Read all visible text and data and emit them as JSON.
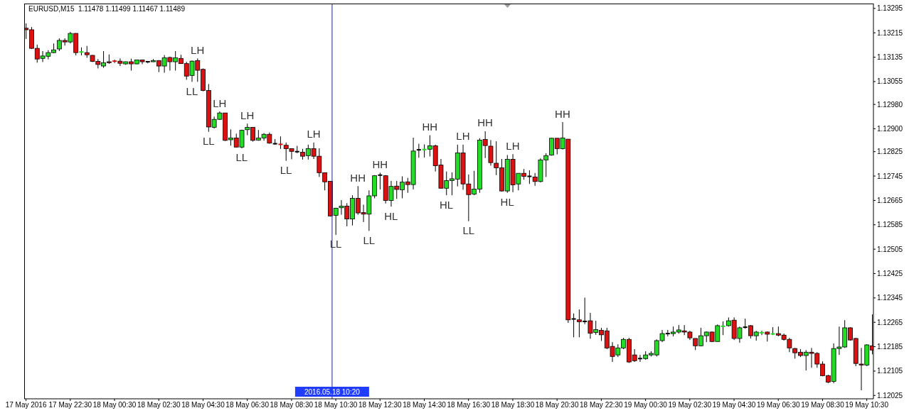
{
  "chart_data": {
    "type": "candlestick",
    "title": "EURUSD,M15  1.11478 1.11499 1.11467 1.11489",
    "x": [
      "2016-05-17T20:30",
      "2016-05-17T20:45",
      "2016-05-17T21:00",
      "2016-05-17T21:15",
      "2016-05-17T21:30",
      "2016-05-17T21:45",
      "2016-05-17T22:00",
      "2016-05-17T22:15",
      "2016-05-17T22:30",
      "2016-05-17T22:45",
      "2016-05-17T23:00",
      "2016-05-17T23:15",
      "2016-05-17T23:30",
      "2016-05-17T23:45",
      "2016-05-18T00:00",
      "2016-05-18T00:15",
      "2016-05-18T00:30",
      "2016-05-18T00:45",
      "2016-05-18T01:00",
      "2016-05-18T01:15",
      "2016-05-18T01:30",
      "2016-05-18T01:45",
      "2016-05-18T02:00",
      "2016-05-18T02:15",
      "2016-05-18T02:30",
      "2016-05-18T02:45",
      "2016-05-18T03:00",
      "2016-05-18T03:15",
      "2016-05-18T03:30",
      "2016-05-18T03:45",
      "2016-05-18T04:00",
      "2016-05-18T04:15",
      "2016-05-18T04:30",
      "2016-05-18T04:45",
      "2016-05-18T05:00",
      "2016-05-18T05:15",
      "2016-05-18T05:30",
      "2016-05-18T05:45",
      "2016-05-18T06:00",
      "2016-05-18T06:15",
      "2016-05-18T06:30",
      "2016-05-18T06:45",
      "2016-05-18T07:00",
      "2016-05-18T07:15",
      "2016-05-18T07:30",
      "2016-05-18T07:45",
      "2016-05-18T08:00",
      "2016-05-18T08:15",
      "2016-05-18T08:30",
      "2016-05-18T08:45",
      "2016-05-18T09:00",
      "2016-05-18T09:15",
      "2016-05-18T09:30",
      "2016-05-18T09:45",
      "2016-05-18T10:00",
      "2016-05-18T10:15",
      "2016-05-18T10:30",
      "2016-05-18T10:45",
      "2016-05-18T11:00",
      "2016-05-18T11:15",
      "2016-05-18T11:30",
      "2016-05-18T11:45",
      "2016-05-18T12:00",
      "2016-05-18T12:15",
      "2016-05-18T12:30",
      "2016-05-18T12:45",
      "2016-05-18T13:00",
      "2016-05-18T13:15",
      "2016-05-18T13:30",
      "2016-05-18T13:45",
      "2016-05-18T14:00",
      "2016-05-18T14:15",
      "2016-05-18T14:30",
      "2016-05-18T14:45",
      "2016-05-18T15:00",
      "2016-05-18T15:15",
      "2016-05-18T15:30",
      "2016-05-18T15:45",
      "2016-05-18T16:00",
      "2016-05-18T16:15",
      "2016-05-18T16:30",
      "2016-05-18T16:45",
      "2016-05-18T17:00",
      "2016-05-18T17:15",
      "2016-05-18T17:30",
      "2016-05-18T17:45",
      "2016-05-18T18:00",
      "2016-05-18T18:15",
      "2016-05-18T18:30",
      "2016-05-18T18:45",
      "2016-05-18T19:00",
      "2016-05-18T19:15",
      "2016-05-18T19:30",
      "2016-05-18T19:45",
      "2016-05-18T20:00",
      "2016-05-18T20:15",
      "2016-05-18T20:30",
      "2016-05-18T20:45",
      "2016-05-18T21:00",
      "2016-05-18T21:15",
      "2016-05-18T21:30",
      "2016-05-18T21:45",
      "2016-05-18T22:00",
      "2016-05-18T22:15",
      "2016-05-18T22:30",
      "2016-05-18T22:45",
      "2016-05-18T23:00",
      "2016-05-18T23:15",
      "2016-05-18T23:30",
      "2016-05-18T23:45",
      "2016-05-19T00:00",
      "2016-05-19T00:15",
      "2016-05-19T00:30",
      "2016-05-19T00:45",
      "2016-05-19T01:00",
      "2016-05-19T01:15",
      "2016-05-19T01:30",
      "2016-05-19T01:45",
      "2016-05-19T02:00",
      "2016-05-19T02:15",
      "2016-05-19T02:30",
      "2016-05-19T02:45",
      "2016-05-19T03:00",
      "2016-05-19T03:15",
      "2016-05-19T03:30",
      "2016-05-19T03:45",
      "2016-05-19T04:00",
      "2016-05-19T04:15",
      "2016-05-19T04:30",
      "2016-05-19T04:45",
      "2016-05-19T05:00",
      "2016-05-19T05:15",
      "2016-05-19T05:30",
      "2016-05-19T05:45",
      "2016-05-19T06:00",
      "2016-05-19T06:15",
      "2016-05-19T06:30",
      "2016-05-19T06:45",
      "2016-05-19T07:00",
      "2016-05-19T07:15",
      "2016-05-19T07:30",
      "2016-05-19T07:45",
      "2016-05-19T08:00",
      "2016-05-19T08:15",
      "2016-05-19T08:30",
      "2016-05-19T08:45",
      "2016-05-19T09:00",
      "2016-05-19T09:15",
      "2016-05-19T09:30",
      "2016-05-19T09:45",
      "2016-05-19T10:00",
      "2016-05-19T10:15",
      "2016-05-19T10:30",
      "2016-05-19T10:45"
    ],
    "ohlc": [
      [
        1.1323,
        1.13246,
        1.13195,
        1.13225
      ],
      [
        1.13225,
        1.13234,
        1.13162,
        1.13164
      ],
      [
        1.13164,
        1.13176,
        1.13117,
        1.13129
      ],
      [
        1.13131,
        1.13155,
        1.13119,
        1.13139
      ],
      [
        1.13138,
        1.13158,
        1.13128,
        1.1315
      ],
      [
        1.1315,
        1.1318,
        1.13148,
        1.13159
      ],
      [
        1.13162,
        1.13197,
        1.13155,
        1.1319
      ],
      [
        1.1319,
        1.13197,
        1.13173,
        1.13185
      ],
      [
        1.13185,
        1.13218,
        1.1318,
        1.13213
      ],
      [
        1.13213,
        1.13214,
        1.13141,
        1.1315
      ],
      [
        1.1315,
        1.13167,
        1.13141,
        1.13152
      ],
      [
        1.1315,
        1.13172,
        1.13133,
        1.13143
      ],
      [
        1.13141,
        1.13142,
        1.13119,
        1.13121
      ],
      [
        1.13121,
        1.13129,
        1.13098,
        1.13111
      ],
      [
        1.13106,
        1.13155,
        1.131,
        1.13117
      ],
      [
        1.1312,
        1.13144,
        1.13113,
        1.13117
      ],
      [
        1.13122,
        1.13127,
        1.13116,
        1.1312
      ],
      [
        1.13122,
        1.13131,
        1.13106,
        1.13115
      ],
      [
        1.13113,
        1.13121,
        1.1311,
        1.1312
      ],
      [
        1.1312,
        1.1313,
        1.13091,
        1.13113
      ],
      [
        1.13113,
        1.13127,
        1.13112,
        1.13126
      ],
      [
        1.13126,
        1.13127,
        1.13112,
        1.1312
      ],
      [
        1.1312,
        1.13121,
        1.13115,
        1.1312
      ],
      [
        1.1312,
        1.13129,
        1.13119,
        1.13124
      ],
      [
        1.13124,
        1.13125,
        1.13086,
        1.13106
      ],
      [
        1.13106,
        1.13142,
        1.13084,
        1.13133
      ],
      [
        1.13134,
        1.13137,
        1.13091,
        1.1312
      ],
      [
        1.1312,
        1.13155,
        1.13091,
        1.13133
      ],
      [
        1.13131,
        1.13143,
        1.13113,
        1.13114
      ],
      [
        1.13114,
        1.1312,
        1.13061,
        1.13073
      ],
      [
        1.13075,
        1.13124,
        1.13054,
        1.13122
      ],
      [
        1.13124,
        1.13131,
        1.13054,
        1.13092
      ],
      [
        1.13095,
        1.13098,
        1.13023,
        1.13026
      ],
      [
        1.13026,
        1.13047,
        1.1289,
        1.12906
      ],
      [
        1.12905,
        1.1294,
        1.12901,
        1.12931
      ],
      [
        1.12931,
        1.12957,
        1.12929,
        1.12952
      ],
      [
        1.12952,
        1.12952,
        1.1286,
        1.12862
      ],
      [
        1.12864,
        1.12898,
        1.12845,
        1.1287
      ],
      [
        1.1287,
        1.12884,
        1.12839,
        1.1284
      ],
      [
        1.1284,
        1.12897,
        1.12836,
        1.12895
      ],
      [
        1.12897,
        1.12917,
        1.12879,
        1.12905
      ],
      [
        1.12905,
        1.12905,
        1.12858,
        1.12862
      ],
      [
        1.12863,
        1.12896,
        1.12861,
        1.1287
      ],
      [
        1.1287,
        1.12886,
        1.12861,
        1.12882
      ],
      [
        1.12882,
        1.12888,
        1.12851,
        1.12853
      ],
      [
        1.12851,
        1.12866,
        1.12848,
        1.12851
      ],
      [
        1.12849,
        1.12875,
        1.12834,
        1.12848
      ],
      [
        1.12846,
        1.12855,
        1.12795,
        1.12835
      ],
      [
        1.12835,
        1.12835,
        1.128,
        1.12826
      ],
      [
        1.12825,
        1.12844,
        1.1282,
        1.12825
      ],
      [
        1.12823,
        1.12834,
        1.12799,
        1.1281
      ],
      [
        1.12812,
        1.12848,
        1.12799,
        1.12835
      ],
      [
        1.12835,
        1.12855,
        1.12801,
        1.1281
      ],
      [
        1.1281,
        1.12836,
        1.12742,
        1.12756
      ],
      [
        1.12756,
        1.12756,
        1.12698,
        1.12726
      ],
      [
        1.12728,
        1.12728,
        1.12612,
        1.12614
      ],
      [
        1.12616,
        1.12641,
        1.12552,
        1.12639
      ],
      [
        1.12641,
        1.12666,
        1.12618,
        1.12646
      ],
      [
        1.12646,
        1.12656,
        1.1258,
        1.12604
      ],
      [
        1.12604,
        1.12682,
        1.12583,
        1.12672
      ],
      [
        1.12672,
        1.12712,
        1.12618,
        1.12624
      ],
      [
        1.12625,
        1.12651,
        1.12594,
        1.1262
      ],
      [
        1.1262,
        1.12698,
        1.12565,
        1.1268
      ],
      [
        1.1268,
        1.12748,
        1.12672,
        1.12746
      ],
      [
        1.12748,
        1.12756,
        1.12701,
        1.12748
      ],
      [
        1.12746,
        1.12748,
        1.12655,
        1.12665
      ],
      [
        1.12665,
        1.12729,
        1.12645,
        1.12711
      ],
      [
        1.12712,
        1.12729,
        1.1267,
        1.12701
      ],
      [
        1.127,
        1.12744,
        1.12672,
        1.12725
      ],
      [
        1.12726,
        1.12739,
        1.1269,
        1.12717
      ],
      [
        1.12717,
        1.12871,
        1.12701,
        1.12827
      ],
      [
        1.12831,
        1.12851,
        1.12805,
        1.12831
      ],
      [
        1.12831,
        1.12849,
        1.12806,
        1.12832
      ],
      [
        1.12833,
        1.12879,
        1.12809,
        1.12844
      ],
      [
        1.12844,
        1.12848,
        1.1276,
        1.12779
      ],
      [
        1.12781,
        1.12801,
        1.12704,
        1.12705
      ],
      [
        1.12705,
        1.1276,
        1.12682,
        1.1273
      ],
      [
        1.1273,
        1.12757,
        1.12682,
        1.12736
      ],
      [
        1.12735,
        1.12848,
        1.12711,
        1.12821
      ],
      [
        1.12821,
        1.12848,
        1.127,
        1.12719
      ],
      [
        1.12719,
        1.1275,
        1.12597,
        1.12684
      ],
      [
        1.12686,
        1.12762,
        1.12682,
        1.12702
      ],
      [
        1.12702,
        1.12869,
        1.1269,
        1.12863
      ],
      [
        1.12865,
        1.12892,
        1.12804,
        1.12845
      ],
      [
        1.12843,
        1.12863,
        1.12779,
        1.12789
      ],
      [
        1.12787,
        1.12859,
        1.12748,
        1.12772
      ],
      [
        1.12772,
        1.12801,
        1.12694,
        1.12696
      ],
      [
        1.12696,
        1.12814,
        1.1269,
        1.128
      ],
      [
        1.128,
        1.12817,
        1.12692,
        1.12716
      ],
      [
        1.12719,
        1.12754,
        1.12698,
        1.12754
      ],
      [
        1.12754,
        1.12768,
        1.12733,
        1.12744
      ],
      [
        1.12744,
        1.12764,
        1.12719,
        1.12744
      ],
      [
        1.12742,
        1.12755,
        1.12713,
        1.12727
      ],
      [
        1.12727,
        1.12803,
        1.12724,
        1.12798
      ],
      [
        1.12798,
        1.1282,
        1.12742,
        1.12812
      ],
      [
        1.12814,
        1.1287,
        1.12812,
        1.12869
      ],
      [
        1.12869,
        1.12869,
        1.12816,
        1.12835
      ],
      [
        1.12835,
        1.12922,
        1.12832,
        1.1287
      ],
      [
        1.12866,
        1.12866,
        1.12263,
        1.12273
      ],
      [
        1.12276,
        1.12294,
        1.12216,
        1.12276
      ],
      [
        1.12273,
        1.12307,
        1.12216,
        1.12267
      ],
      [
        1.12268,
        1.12346,
        1.12259,
        1.12268
      ],
      [
        1.1227,
        1.12296,
        1.12211,
        1.12229
      ],
      [
        1.12232,
        1.1227,
        1.12224,
        1.12241
      ],
      [
        1.12239,
        1.12247,
        1.12204,
        1.12224
      ],
      [
        1.12237,
        1.12247,
        1.12177,
        1.12181
      ],
      [
        1.12186,
        1.122,
        1.12135,
        1.12153
      ],
      [
        1.12158,
        1.12193,
        1.12151,
        1.12181
      ],
      [
        1.12181,
        1.12214,
        1.12177,
        1.12209
      ],
      [
        1.12209,
        1.12214,
        1.12132,
        1.12135
      ],
      [
        1.12158,
        1.12177,
        1.12135,
        1.12139
      ],
      [
        1.12146,
        1.12158,
        1.12135,
        1.12146
      ],
      [
        1.12146,
        1.1217,
        1.12142,
        1.12158
      ],
      [
        1.12158,
        1.1217,
        1.12153,
        1.12163
      ],
      [
        1.12158,
        1.12209,
        1.12153,
        1.12205
      ],
      [
        1.12205,
        1.1224,
        1.122,
        1.12228
      ],
      [
        1.12228,
        1.1224,
        1.12219,
        1.12228
      ],
      [
        1.12228,
        1.12251,
        1.12219,
        1.12233
      ],
      [
        1.12233,
        1.12256,
        1.12228,
        1.1224
      ],
      [
        1.12237,
        1.12256,
        1.12223,
        1.12233
      ],
      [
        1.12233,
        1.12237,
        1.12207,
        1.12214
      ],
      [
        1.12212,
        1.12212,
        1.12174,
        1.12188
      ],
      [
        1.12188,
        1.12247,
        1.12186,
        1.12221
      ],
      [
        1.12221,
        1.12235,
        1.122,
        1.12233
      ],
      [
        1.12233,
        1.12235,
        1.122,
        1.12202
      ],
      [
        1.12202,
        1.12258,
        1.12202,
        1.12254
      ],
      [
        1.12251,
        1.12268,
        1.12223,
        1.12252
      ],
      [
        1.12254,
        1.12281,
        1.12251,
        1.1227
      ],
      [
        1.12272,
        1.12281,
        1.12207,
        1.12212
      ],
      [
        1.12212,
        1.12251,
        1.12198,
        1.12247
      ],
      [
        1.12249,
        1.12277,
        1.12244,
        1.12249
      ],
      [
        1.12254,
        1.12256,
        1.12212,
        1.12221
      ],
      [
        1.12221,
        1.12237,
        1.12205,
        1.12233
      ],
      [
        1.1223,
        1.12237,
        1.12223,
        1.12231
      ],
      [
        1.12233,
        1.12235,
        1.12202,
        1.12226
      ],
      [
        1.12226,
        1.12249,
        1.12223,
        1.12227
      ],
      [
        1.12228,
        1.12251,
        1.12219,
        1.12223
      ],
      [
        1.12223,
        1.12228,
        1.12205,
        1.12209
      ],
      [
        1.12209,
        1.12214,
        1.12167,
        1.12181
      ],
      [
        1.12179,
        1.12181,
        1.12146,
        1.12165
      ],
      [
        1.12167,
        1.12177,
        1.12151,
        1.12156
      ],
      [
        1.12156,
        1.12174,
        1.12107,
        1.12167
      ],
      [
        1.12167,
        1.12181,
        1.12116,
        1.12163
      ],
      [
        1.12163,
        1.12167,
        1.12116,
        1.12128
      ],
      [
        1.12128,
        1.12137,
        1.12088,
        1.1209
      ],
      [
        1.1209,
        1.12093,
        1.12065,
        1.12069
      ],
      [
        1.12071,
        1.12196,
        1.12065,
        1.12179
      ],
      [
        1.12179,
        1.12251,
        1.12158,
        1.12184
      ],
      [
        1.12184,
        1.12272,
        1.12181,
        1.12247
      ],
      [
        1.12247,
        1.12249,
        1.12205,
        1.12207
      ],
      [
        1.12212,
        1.12214,
        1.12121,
        1.1213
      ],
      [
        1.12128,
        1.12181,
        1.12042,
        1.12125
      ],
      [
        1.12125,
        1.12193,
        1.12121,
        1.12191
      ],
      [
        1.12188,
        1.12291,
        1.1216,
        1.12174
      ]
    ],
    "colors": [
      "#dd1111",
      "#dd1111",
      "#dd1111",
      "#22dd22",
      "#22dd22",
      "#22dd22",
      "#22dd22",
      "#dd1111",
      "#22dd22",
      "#dd1111",
      "#22dd22",
      "#dd1111",
      "#dd1111",
      "#dd1111",
      "#22dd22",
      "#dd1111",
      "#dd1111",
      "#dd1111",
      "#22dd22",
      "#dd1111",
      "#22dd22",
      "#dd1111",
      "#000000",
      "#22dd22",
      "#dd1111",
      "#22dd22",
      "#dd1111",
      "#22dd22",
      "#dd1111",
      "#dd1111",
      "#22dd22",
      "#dd1111",
      "#dd1111",
      "#dd1111",
      "#22dd22",
      "#22dd22",
      "#dd1111",
      "#22dd22",
      "#dd1111",
      "#22dd22",
      "#22dd22",
      "#dd1111",
      "#22dd22",
      "#22dd22",
      "#dd1111",
      "#000000",
      "#dd1111",
      "#dd1111",
      "#dd1111",
      "#000000",
      "#dd1111",
      "#22dd22",
      "#dd1111",
      "#dd1111",
      "#dd1111",
      "#dd1111",
      "#22dd22",
      "#22dd22",
      "#dd1111",
      "#22dd22",
      "#dd1111",
      "#dd1111",
      "#22dd22",
      "#22dd22",
      "#000000",
      "#dd1111",
      "#22dd22",
      "#dd1111",
      "#22dd22",
      "#dd1111",
      "#22dd22",
      "#000000",
      "#22dd22",
      "#22dd22",
      "#dd1111",
      "#dd1111",
      "#22dd22",
      "#22dd22",
      "#22dd22",
      "#dd1111",
      "#dd1111",
      "#22dd22",
      "#22dd22",
      "#dd1111",
      "#dd1111",
      "#dd1111",
      "#dd1111",
      "#22dd22",
      "#dd1111",
      "#22dd22",
      "#dd1111",
      "#000000",
      "#dd1111",
      "#22dd22",
      "#22dd22",
      "#22dd22",
      "#dd1111",
      "#22dd22",
      "#dd1111",
      "#000000",
      "#dd1111",
      "#000000",
      "#dd1111",
      "#22dd22",
      "#dd1111",
      "#dd1111",
      "#dd1111",
      "#22dd22",
      "#22dd22",
      "#dd1111",
      "#dd1111",
      "#000000",
      "#22dd22",
      "#22dd22",
      "#22dd22",
      "#22dd22",
      "#000000",
      "#22dd22",
      "#22dd22",
      "#dd1111",
      "#dd1111",
      "#dd1111",
      "#22dd22",
      "#22dd22",
      "#dd1111",
      "#22dd22",
      "#22dd22",
      "#22dd22",
      "#dd1111",
      "#22dd22",
      "#000000",
      "#dd1111",
      "#22dd22",
      "#22dd22",
      "#dd1111",
      "#22dd22",
      "#dd1111",
      "#dd1111",
      "#dd1111",
      "#dd1111",
      "#dd1111",
      "#22dd22",
      "#dd1111",
      "#dd1111",
      "#dd1111",
      "#dd1111",
      "#22dd22",
      "#22dd22",
      "#22dd22",
      "#dd1111",
      "#dd1111",
      "#dd1111",
      "#22dd22",
      "#dd1111"
    ],
    "xlim": [
      "2016-05-17T20:25",
      "2016-05-19T10:48"
    ],
    "xticks": [
      {
        "value": "2016-05-17T20:30",
        "label": "17 May 2016"
      },
      {
        "value": "2016-05-17T22:30",
        "label": "17 May 22:30"
      },
      {
        "value": "2016-05-18T00:30",
        "label": "18 May 00:30"
      },
      {
        "value": "2016-05-18T02:30",
        "label": "18 May 02:30"
      },
      {
        "value": "2016-05-18T04:30",
        "label": "18 May 04:30"
      },
      {
        "value": "2016-05-18T06:30",
        "label": "18 May 06:30"
      },
      {
        "value": "2016-05-18T08:30",
        "label": "18 May 08:30"
      },
      {
        "value": "2016-05-18T10:30",
        "label": "18 May 10:30"
      },
      {
        "value": "2016-05-18T12:30",
        "label": "18 May 12:30"
      },
      {
        "value": "2016-05-18T14:30",
        "label": "18 May 14:30"
      },
      {
        "value": "2016-05-18T16:30",
        "label": "18 May 16:30"
      },
      {
        "value": "2016-05-18T18:30",
        "label": "18 May 18:30"
      },
      {
        "value": "2016-05-18T20:30",
        "label": "18 May 20:30"
      },
      {
        "value": "2016-05-18T22:30",
        "label": "18 May 22:30"
      },
      {
        "value": "2016-05-19T00:30",
        "label": "19 May 00:30"
      },
      {
        "value": "2016-05-19T02:30",
        "label": "19 May 02:30"
      },
      {
        "value": "2016-05-19T04:30",
        "label": "19 May 04:30"
      },
      {
        "value": "2016-05-19T06:30",
        "label": "19 May 06:30"
      },
      {
        "value": "2016-05-19T08:30",
        "label": "19 May 08:30"
      },
      {
        "value": "2016-05-19T10:30",
        "label": "19 May 10:30"
      }
    ],
    "ylim": [
      1.12014,
      1.13311
    ],
    "yticks": [
      1.13295,
      1.13215,
      1.13135,
      1.13055,
      {
        "value": 1.1298,
        "label": "1.12980"
      },
      {
        "value": 1.129,
        "label": "1.12900"
      },
      1.12825,
      1.12745,
      1.12665,
      1.12585,
      1.12505,
      1.12425,
      1.12345,
      1.12265,
      1.12185,
      1.12105,
      1.12025
    ],
    "ref_lines": [
      {
        "axis": "x",
        "value": "2016-05-18T10:20",
        "label": "2016.05.18 10:20",
        "color": "#1f2a7a"
      }
    ],
    "annotations": [
      {
        "text": "LH",
        "x": "2016-05-18T04:15",
        "y": 1.13131
      },
      {
        "text": "LL",
        "x": "2016-05-18T04:00",
        "y": 1.13054
      },
      {
        "text": "LH",
        "x": "2016-05-18T05:15",
        "y": 1.12957
      },
      {
        "text": "LL",
        "x": "2016-05-18T04:45",
        "y": 1.1289
      },
      {
        "text": "LH",
        "x": "2016-05-18T06:30",
        "y": 1.12917
      },
      {
        "text": "LL",
        "x": "2016-05-18T06:15",
        "y": 1.12836
      },
      {
        "text": "LL",
        "x": "2016-05-18T08:15",
        "y": 1.12795
      },
      {
        "text": "LH",
        "x": "2016-05-18T09:30",
        "y": 1.12855
      },
      {
        "text": "LL",
        "x": "2016-05-18T10:30",
        "y": 1.12552
      },
      {
        "text": "HH",
        "x": "2016-05-18T11:30",
        "y": 1.12712
      },
      {
        "text": "LL",
        "x": "2016-05-18T12:00",
        "y": 1.12565
      },
      {
        "text": "HH",
        "x": "2016-05-18T12:30",
        "y": 1.12756
      },
      {
        "text": "HL",
        "x": "2016-05-18T13:00",
        "y": 1.12645
      },
      {
        "text": "HH",
        "x": "2016-05-18T14:45",
        "y": 1.12879
      },
      {
        "text": "HL",
        "x": "2016-05-18T15:30",
        "y": 1.12682
      },
      {
        "text": "LH",
        "x": "2016-05-18T16:15",
        "y": 1.12848
      },
      {
        "text": "LL",
        "x": "2016-05-18T16:30",
        "y": 1.12597
      },
      {
        "text": "HH",
        "x": "2016-05-18T17:15",
        "y": 1.12892
      },
      {
        "text": "HL",
        "x": "2016-05-18T18:15",
        "y": 1.1269
      },
      {
        "text": "LH",
        "x": "2016-05-18T18:30",
        "y": 1.12817
      },
      {
        "text": "HH",
        "x": "2016-05-18T20:45",
        "y": 1.12922
      }
    ]
  }
}
